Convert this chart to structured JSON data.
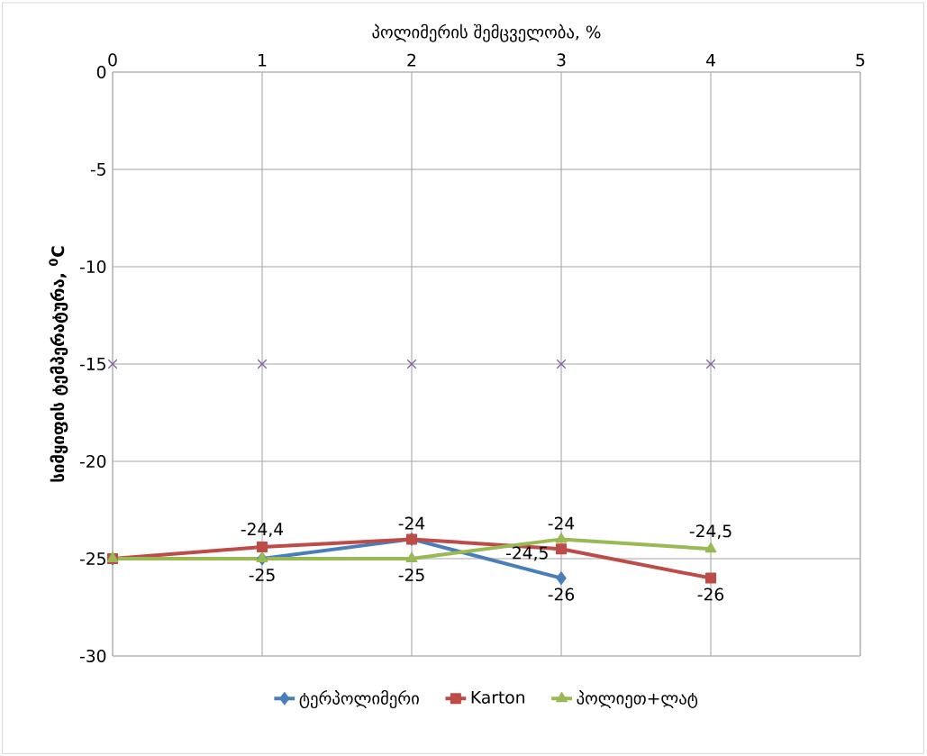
{
  "chart_data": {
    "type": "line",
    "xlabel": "პოლიმერის შემცველობა, %",
    "ylabel": "სიმყიფის ტემპერატურა, $^{0}$C",
    "x": [
      0,
      1,
      2,
      3,
      4
    ],
    "xlim": [
      0,
      5
    ],
    "xticks": [
      0,
      1,
      2,
      3,
      4,
      5
    ],
    "ylim": [
      -30,
      0
    ],
    "yticks": [
      -30,
      -25,
      -20,
      -15,
      -10,
      -5,
      0
    ],
    "grid": true,
    "legend": "bottom",
    "series": [
      {
        "name": "ტერპოლიმერი",
        "color": "#4a7ebb",
        "marker": "diamond",
        "values": [
          -25,
          -25,
          -24,
          -26,
          null
        ],
        "value_labels": [
          null,
          null,
          "-24",
          "-26",
          null
        ]
      },
      {
        "name": "Karton",
        "color": "#be4b48",
        "marker": "square",
        "values": [
          -25,
          -24.4,
          -24,
          -24.5,
          -26
        ],
        "value_labels": [
          null,
          "-24,4",
          null,
          "-24,5",
          "-26"
        ]
      },
      {
        "name": "პოლიეთ+ლატ",
        "color": "#98b954",
        "marker": "triangle",
        "values": [
          -25,
          -25,
          -25,
          -24,
          -24.5
        ],
        "value_labels": [
          null,
          "-25",
          "-25",
          "-24",
          "-24,5"
        ]
      },
      {
        "type": "scatter",
        "color": "#7d60a0",
        "marker": "cross",
        "values": [
          -15,
          -15,
          -15,
          -15,
          -15
        ]
      }
    ]
  }
}
